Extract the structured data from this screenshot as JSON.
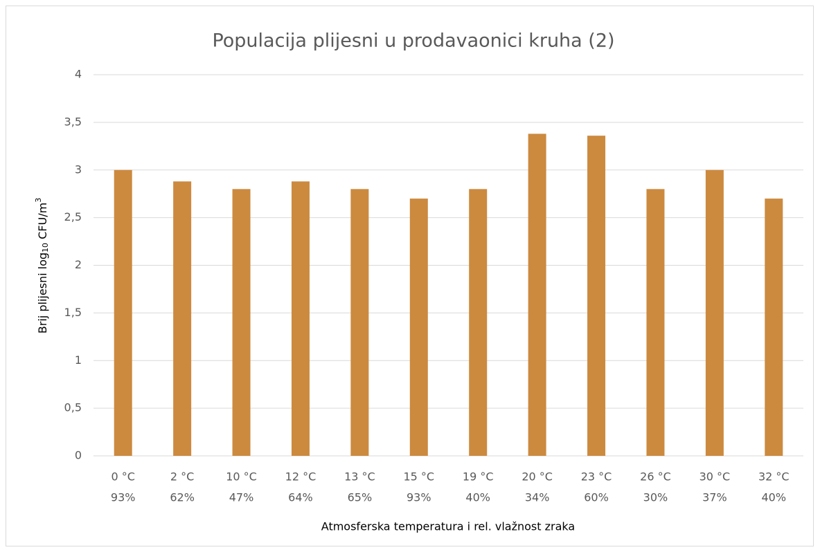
{
  "chart_data": {
    "type": "bar",
    "title": "Populacija plijesni u prodavaonici kruha (2)",
    "x_label": "Atmosferska temperatura i rel. vlažnost zraka",
    "y_label": [
      "Brij plijesni log",
      "10",
      " CFU/m",
      "3"
    ],
    "categories": [
      [
        "0 °C",
        "93%"
      ],
      [
        "2 °C",
        "62%"
      ],
      [
        "10 °C",
        "47%"
      ],
      [
        "12 °C",
        "64%"
      ],
      [
        "13 °C",
        "65%"
      ],
      [
        "15  °C",
        "93%"
      ],
      [
        "19 °C",
        "40%"
      ],
      [
        "20 °C",
        "34%"
      ],
      [
        "23 °C",
        "60%"
      ],
      [
        "26  °C",
        "30%"
      ],
      [
        "30 °C",
        "37%"
      ],
      [
        "32 °C",
        "40%"
      ]
    ],
    "values": [
      3.0,
      2.88,
      2.8,
      2.88,
      2.8,
      2.7,
      2.8,
      3.38,
      3.36,
      2.8,
      3.0,
      2.7
    ],
    "color": "#cc8a3f",
    "ylim": [
      0,
      4
    ],
    "yticks": [
      0,
      {
        "value": 0.5,
        "label": "0,5"
      },
      1,
      {
        "value": 1.5,
        "label": "1,5"
      },
      2,
      {
        "value": 2.5,
        "label": "2,5"
      },
      3,
      {
        "value": 3.5,
        "label": "3,5"
      },
      4
    ],
    "grid": true
  }
}
